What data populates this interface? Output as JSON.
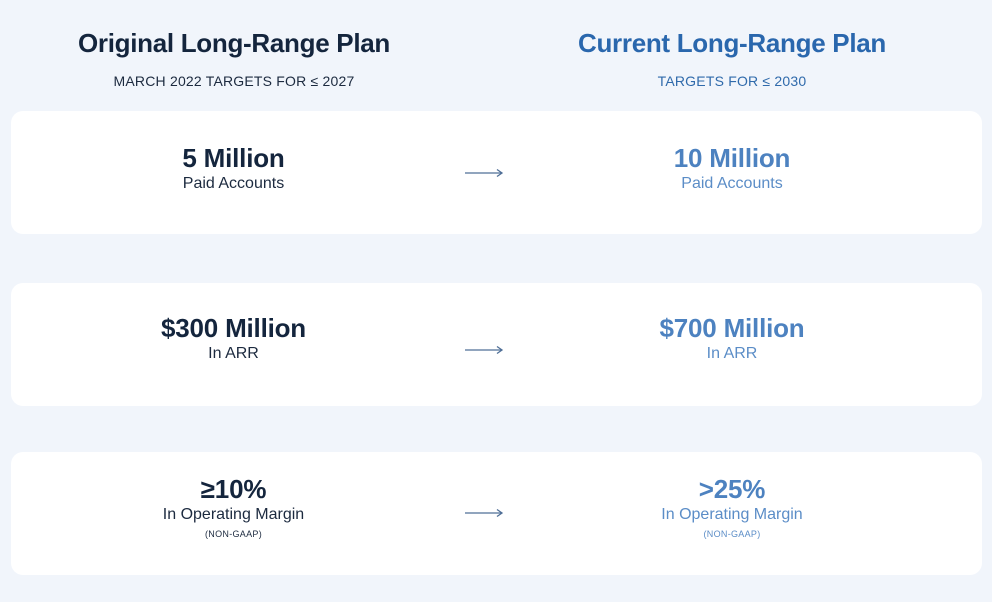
{
  "original": {
    "title": "Original Long-Range Plan",
    "subtitle": "MARCH 2022 TARGETS FOR ≤ 2027"
  },
  "current": {
    "title": "Current Long-Range Plan",
    "subtitle": "TARGETS FOR ≤ 2030"
  },
  "rows": [
    {
      "original": {
        "value": "5 Million",
        "label": "Paid Accounts",
        "note": ""
      },
      "current": {
        "value": "10 Million",
        "label": "Paid Accounts",
        "note": ""
      },
      "icon": "arrow-right-icon"
    },
    {
      "original": {
        "value": "$300 Million",
        "label": "In ARR",
        "note": ""
      },
      "current": {
        "value": "$700 Million",
        "label": "In ARR",
        "note": ""
      },
      "icon": "arrow-right-icon"
    },
    {
      "original": {
        "value": "≥10%",
        "label": "In Operating Margin",
        "note": "(NON-GAAP)"
      },
      "current": {
        "value": ">25%",
        "label": "In Operating Margin",
        "note": "(NON-GAAP)"
      },
      "icon": "arrow-right-icon"
    }
  ],
  "colors": {
    "background": "#f1f5fb",
    "card": "#ffffff",
    "original_text": "#14253d",
    "current_title": "#2a67ad",
    "current_value": "#4d82c0",
    "arrow": "#4f6f97"
  }
}
